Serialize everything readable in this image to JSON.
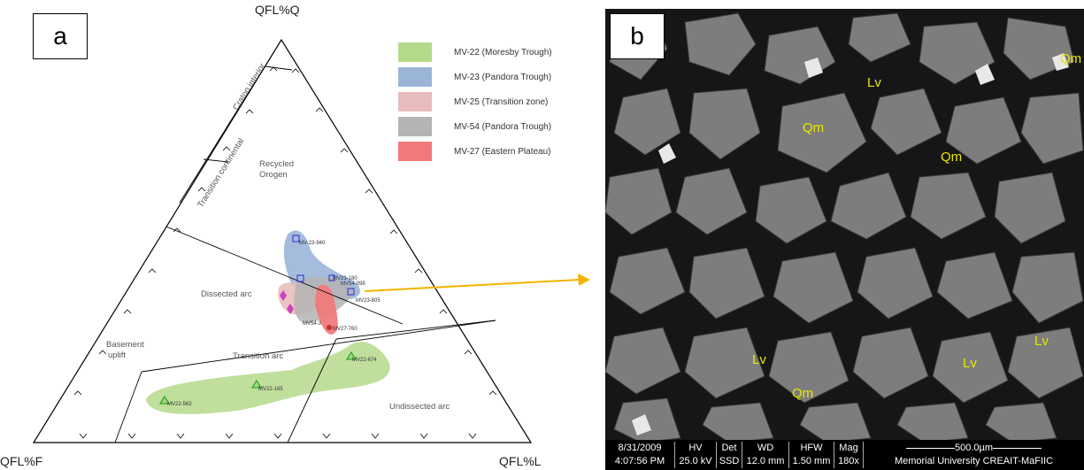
{
  "panels": {
    "a_label": "a",
    "b_label": "b"
  },
  "ternary": {
    "apex_top": "QFL%Q",
    "apex_left": "QFL%F",
    "apex_right": "QFL%L",
    "regions": {
      "craton": "Craton interior",
      "transitional": "Transition continental",
      "recycled_1": "Recycled",
      "recycled_2": "Orogen",
      "dissected": "Dissected arc",
      "basement_1": "Basement",
      "basement_2": "uplift",
      "transition_arc": "Transition arc",
      "undissected": "Undissected arc"
    },
    "points": {
      "p1": "MV-23-940",
      "p2": "MV23-180",
      "p3": "MV23-805",
      "p4": "MV27-760",
      "p5": "MV22-674",
      "p6": "MV22-165",
      "p7": "MV22-562",
      "p8": "MV54-3",
      "p9": "MV54-098"
    },
    "legend": [
      {
        "label": "MV-22 (Moresby Trough)",
        "color": "#b5d98b"
      },
      {
        "label": "MV-23 (Pandora Trough)",
        "color": "#9bb5d8"
      },
      {
        "label": "MV-25 (Transition zone)",
        "color": "#e8bcbc"
      },
      {
        "label": "MV-54 (Pandora Trough)",
        "color": "#b4b4b4"
      },
      {
        "label": "MV-27  (Eastern Plateau)",
        "color": "#f07a7a"
      }
    ],
    "arrow_color": "#f2b400"
  },
  "sem": {
    "minerals": {
      "qm1": "Qm",
      "lv1": "Lv",
      "qm2": "Qm",
      "qm3": "Qm",
      "lv2": "Lv",
      "lv3": "Lv",
      "lv4": "Lv",
      "qm4": "Qm"
    },
    "infobar": {
      "date": "8/31/2009",
      "time": "4:07:56 PM",
      "hv_h": "HV",
      "hv_v": "25.0 kV",
      "det_h": "Det",
      "det_v": "SSD",
      "wd_h": "WD",
      "wd_v": "12.0 mm",
      "hfw_h": "HFW",
      "hfw_v": "1.50 mm",
      "mag_h": "Mag",
      "mag_v": "180x",
      "scale": "500.0µm",
      "institution": "Memorial University CREAIT-MaFIIC"
    }
  }
}
